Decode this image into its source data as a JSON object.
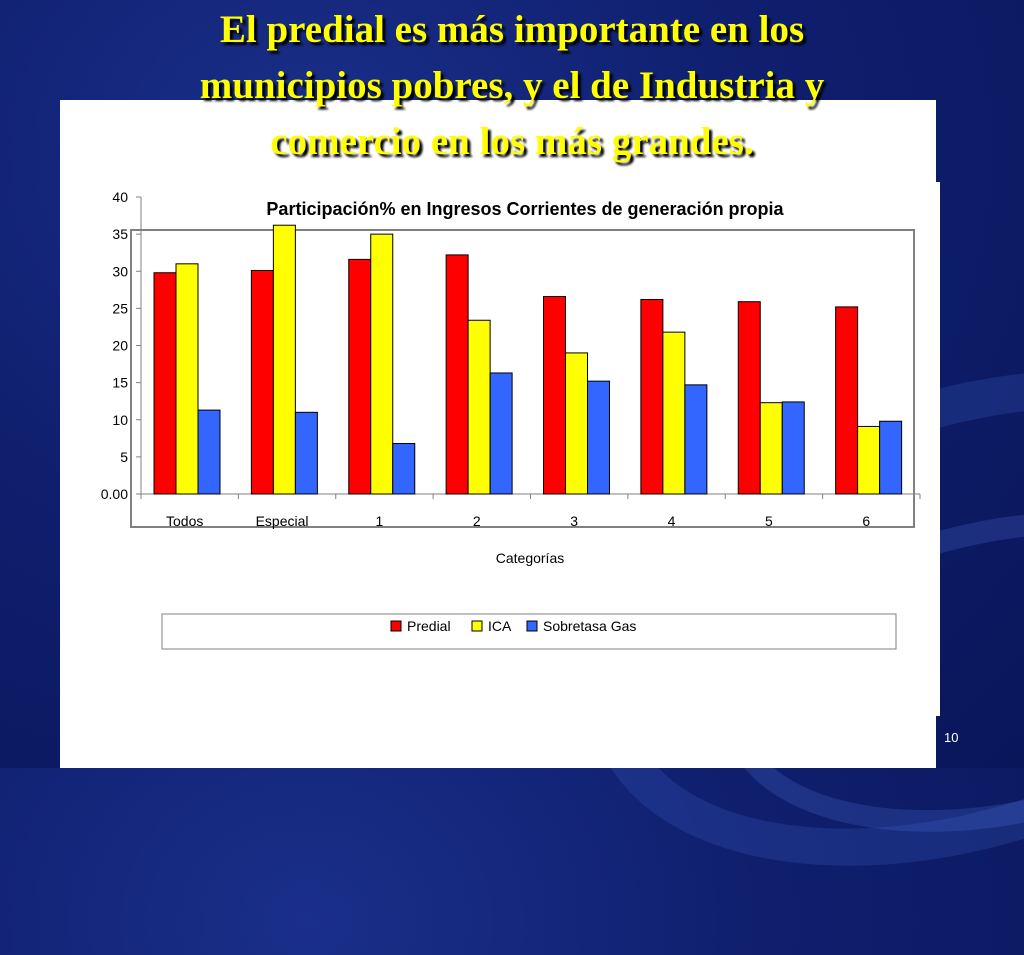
{
  "slide": {
    "title_lines": [
      "El predial es más importante en los",
      "municipios pobres, y el de Industria y",
      "comercio en los más grandes."
    ],
    "page_number": "10"
  },
  "colors": {
    "background": "#0f1f6e",
    "title": "#ffff00",
    "predial": "#ff0000",
    "ica": "#ffff00",
    "sobretasa": "#3366ff"
  },
  "chart_data": {
    "type": "bar",
    "title": "Participación% en Ingresos Corrientes de generación propia",
    "xlabel": "Categorías",
    "ylabel": "",
    "categories": [
      "Todos",
      "Especial",
      "1",
      "2",
      "3",
      "4",
      "5",
      "6"
    ],
    "series": [
      {
        "name": "Predial",
        "color": "#ff0000",
        "values": [
          29.8,
          30.1,
          31.6,
          32.2,
          26.6,
          26.2,
          25.9,
          25.2
        ]
      },
      {
        "name": "ICA",
        "color": "#ffff00",
        "values": [
          31.0,
          36.2,
          35.0,
          23.4,
          19.0,
          21.8,
          12.3,
          9.1
        ]
      },
      {
        "name": "Sobretasa Gas",
        "color": "#3366ff",
        "values": [
          11.3,
          11.0,
          6.8,
          16.3,
          15.2,
          14.7,
          12.4,
          9.8
        ]
      }
    ],
    "ylim": [
      0,
      40
    ],
    "yticks": [
      {
        "value": 0,
        "label": "0.00"
      },
      {
        "value": 5,
        "label": "5"
      },
      {
        "value": 10,
        "label": "10"
      },
      {
        "value": 15,
        "label": "15"
      },
      {
        "value": 20,
        "label": "20"
      },
      {
        "value": 25,
        "label": "25"
      },
      {
        "value": 30,
        "label": "30"
      },
      {
        "value": 35,
        "label": "35"
      },
      {
        "value": 40,
        "label": "40"
      }
    ],
    "grid": false,
    "legend_position": "bottom"
  }
}
